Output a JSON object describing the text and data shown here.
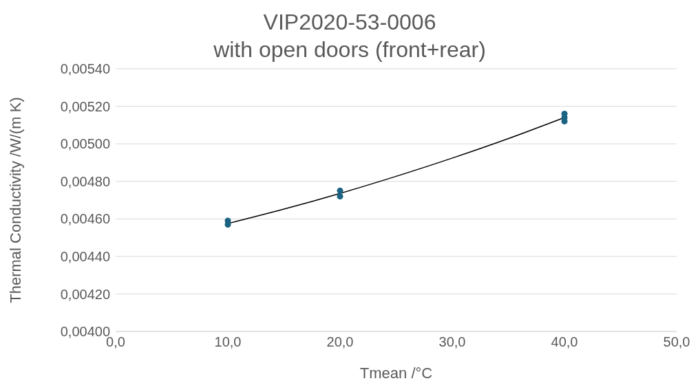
{
  "chart_data": {
    "type": "scatter",
    "title": "VIP2020-53-0006",
    "subtitle": "with open doors (front+rear)",
    "xlabel": "Tmean /°C",
    "ylabel": "Thermal Conductivity /W/(m K)",
    "series": [
      {
        "marker": "circle",
        "color": "#1b6382",
        "x": [
          10,
          10,
          20,
          20,
          40,
          40,
          40
        ],
        "values": [
          0.00459,
          0.00457,
          0.00475,
          0.00472,
          0.00516,
          0.00514,
          0.00512
        ]
      },
      {
        "type": "line",
        "marker": "none",
        "color": "#000000",
        "x": [
          10,
          15,
          20,
          25,
          30,
          35,
          40
        ],
        "values": [
          0.004575,
          0.004652,
          0.004736,
          0.004827,
          0.004924,
          0.005028,
          0.00514
        ]
      }
    ],
    "xlim": [
      0,
      50
    ],
    "xticks": [
      {
        "value": 0,
        "label": "0,0"
      },
      {
        "value": 10,
        "label": "10,0"
      },
      {
        "value": 20,
        "label": "20,0"
      },
      {
        "value": 30,
        "label": "30,0"
      },
      {
        "value": 40,
        "label": "40,0"
      },
      {
        "value": 50,
        "label": "50,0"
      }
    ],
    "ylim": [
      0.004,
      0.0054
    ],
    "yticks": [
      {
        "value": 0.004,
        "label": "0,00400"
      },
      {
        "value": 0.0042,
        "label": "0,00420"
      },
      {
        "value": 0.0044,
        "label": "0,00440"
      },
      {
        "value": 0.0046,
        "label": "0,00460"
      },
      {
        "value": 0.0048,
        "label": "0,00480"
      },
      {
        "value": 0.005,
        "label": "0,00500"
      },
      {
        "value": 0.0052,
        "label": "0,00520"
      },
      {
        "value": 0.0054,
        "label": "0,00540"
      }
    ],
    "grid": "y"
  }
}
